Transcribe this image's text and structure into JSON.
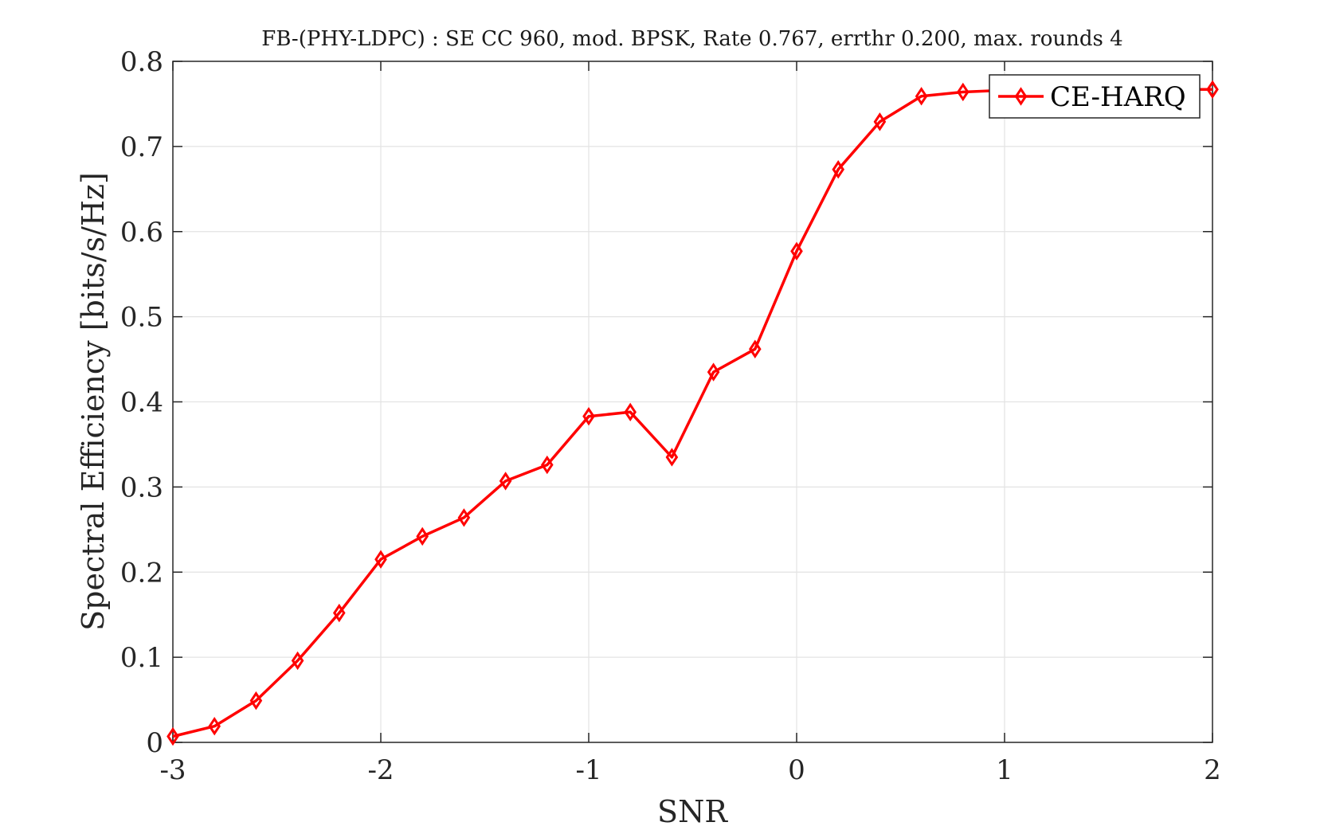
{
  "chart_data": {
    "type": "line",
    "title": "FB-(PHY-LDPC) : SE CC 960, mod. BPSK, Rate 0.767, errthr 0.200, max. rounds 4",
    "xlabel": "SNR",
    "ylabel": "Spectral Efficiency [bits/s/Hz]",
    "xlim": [
      -3,
      2
    ],
    "ylim": [
      0,
      0.8
    ],
    "xticks": [
      -3,
      -2,
      -1,
      0,
      1,
      2
    ],
    "xtick_labels": [
      "-3",
      "-2",
      "-1",
      "0",
      "1",
      "2"
    ],
    "yticks": [
      0,
      0.1,
      0.2,
      0.3,
      0.4,
      0.5,
      0.6,
      0.7,
      0.8
    ],
    "ytick_labels": [
      "0",
      "0.1",
      "0.2",
      "0.3",
      "0.4",
      "0.5",
      "0.6",
      "0.7",
      "0.8"
    ],
    "grid": true,
    "legend_position": "top-right",
    "series": [
      {
        "name": "CE-HARQ",
        "color": "#ff0000",
        "marker": "diamond",
        "x": [
          -3.0,
          -2.8,
          -2.6,
          -2.4,
          -2.2,
          -2.0,
          -1.8,
          -1.6,
          -1.4,
          -1.2,
          -1.0,
          -0.8,
          -0.6,
          -0.4,
          -0.2,
          0.0,
          0.2,
          0.4,
          0.6,
          0.8,
          1.0,
          1.2,
          1.4,
          1.6,
          1.8,
          2.0
        ],
        "y": [
          0.007,
          0.019,
          0.049,
          0.096,
          0.152,
          0.215,
          0.242,
          0.264,
          0.307,
          0.326,
          0.383,
          0.388,
          0.335,
          0.435,
          0.462,
          0.577,
          0.673,
          0.729,
          0.759,
          0.764,
          0.766,
          0.767,
          0.767,
          0.767,
          0.767,
          0.767
        ]
      }
    ]
  }
}
